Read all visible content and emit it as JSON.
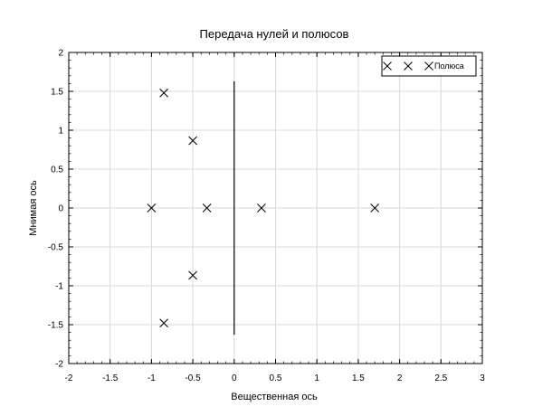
{
  "chart_data": {
    "type": "scatter",
    "title": "Передача нулей и полюсов",
    "xlabel": "Вещественная ось",
    "ylabel": "Мнимая ось",
    "xlim": [
      -2,
      3
    ],
    "ylim": [
      -2,
      2
    ],
    "x_ticks": [
      "-2",
      "-1.5",
      "-1",
      "-0.5",
      "0",
      "0.5",
      "1",
      "1.5",
      "2",
      "2.5",
      "3"
    ],
    "y_ticks": [
      "-2",
      "-1.5",
      "-1",
      "-0.5",
      "0",
      "0.5",
      "1",
      "1.5",
      "2"
    ],
    "grid": true,
    "legend_position": "top-right",
    "series": [
      {
        "name": "Полюса",
        "marker": "x",
        "points": [
          {
            "x": -0.85,
            "y": 1.48
          },
          {
            "x": -0.5,
            "y": 0.866
          },
          {
            "x": -1.0,
            "y": 0
          },
          {
            "x": -0.33,
            "y": 0
          },
          {
            "x": 0.33,
            "y": 0
          },
          {
            "x": 1.7,
            "y": 0
          },
          {
            "x": -0.5,
            "y": -0.866
          },
          {
            "x": -0.85,
            "y": -1.48
          }
        ]
      }
    ],
    "annotations": [
      {
        "type": "vertical-line",
        "x": 0,
        "y_from": -1.63,
        "y_to": 1.63
      }
    ]
  }
}
